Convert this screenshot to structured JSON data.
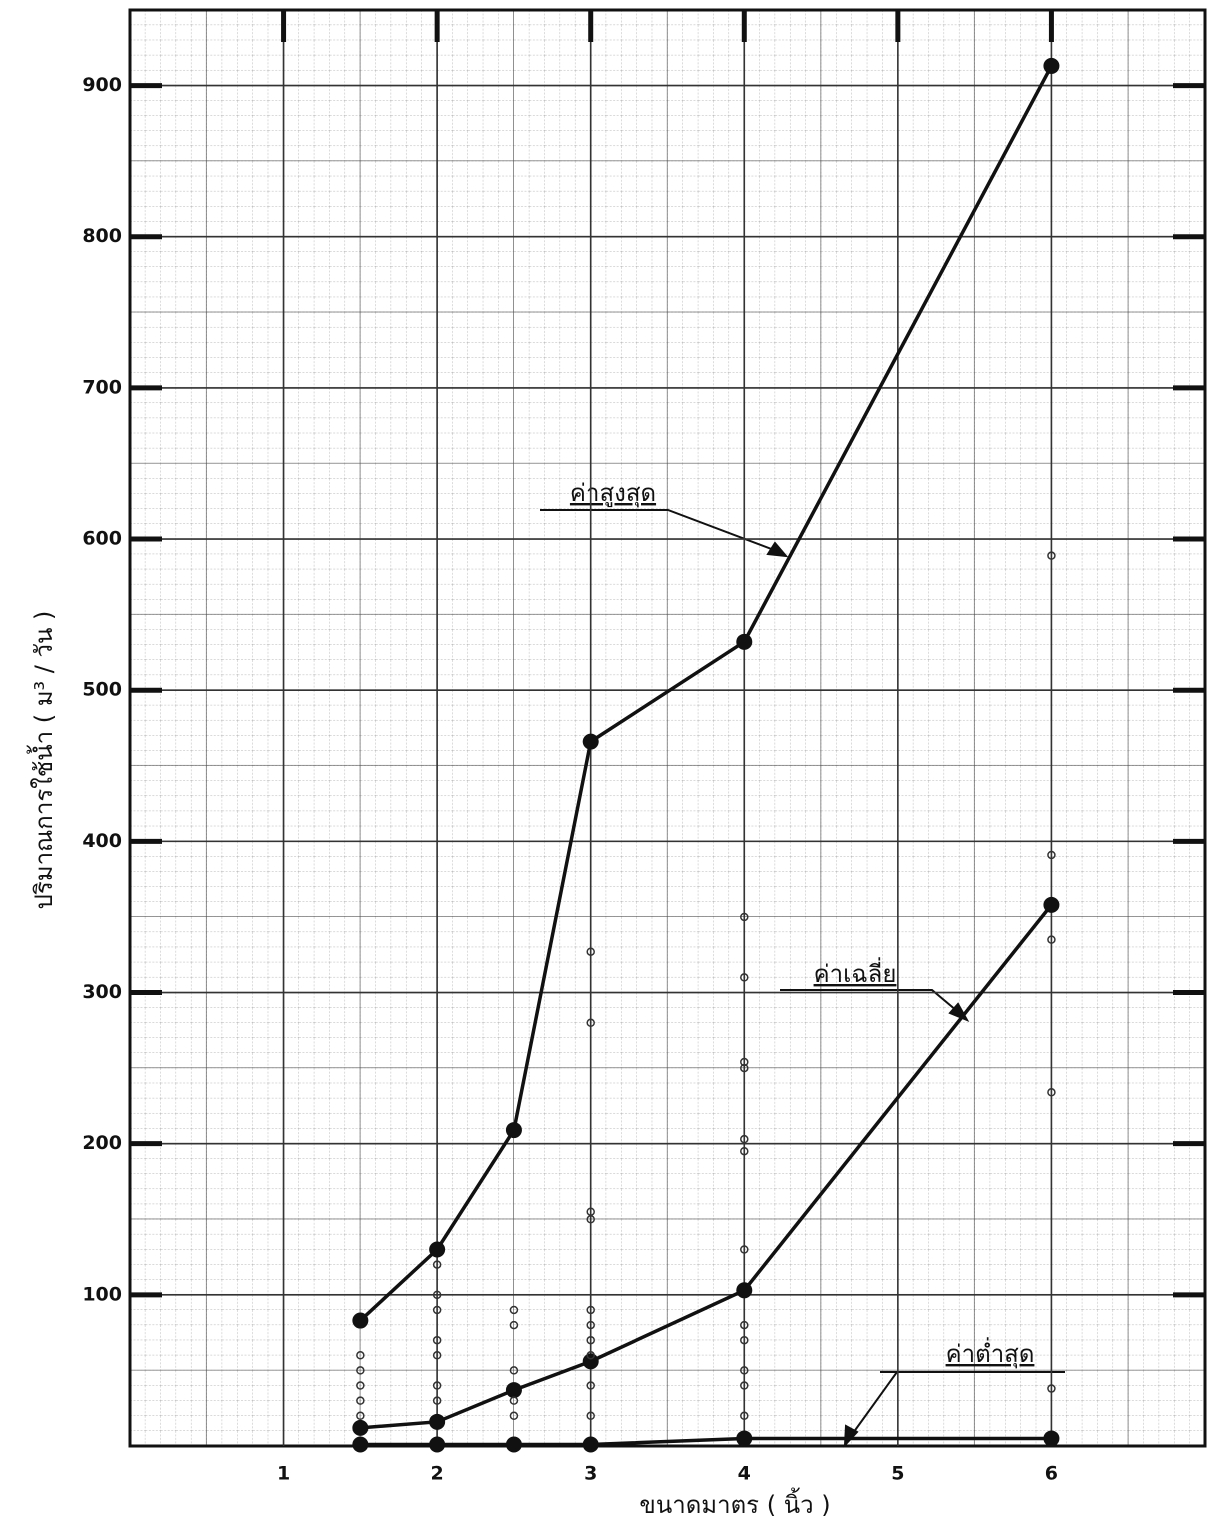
{
  "chart_data": {
    "type": "line",
    "x_label": "ขนาดมาตร ( นิ้ว )",
    "y_label": "ปริมาณการใช้น้ำ   ( ม³ / วัน )",
    "xlim": [
      0,
      7
    ],
    "ylim": [
      0,
      950
    ],
    "xticks": [
      1,
      2,
      3,
      4,
      5,
      6
    ],
    "yticks": [
      100,
      200,
      300,
      400,
      500,
      600,
      700,
      800,
      900
    ],
    "grid": true,
    "x": [
      1.5,
      2,
      2.5,
      3,
      4,
      6
    ],
    "series": [
      {
        "name": "ค่าสูงสุด",
        "color": "#111111",
        "values": [
          83,
          130,
          209,
          466,
          532,
          913
        ]
      },
      {
        "name": "ค่าเฉลี่ย",
        "color": "#111111",
        "values": [
          12,
          16,
          37,
          56,
          103,
          358
        ]
      },
      {
        "name": "ค่าต่ำสุด",
        "color": "#111111",
        "values": [
          1,
          1,
          1,
          1,
          5,
          5
        ]
      },
      {
        "type": "scatter",
        "color": "#333333",
        "x": [
          1.5,
          1.5,
          1.5,
          1.5,
          1.5,
          2,
          2,
          2,
          2,
          2,
          2,
          2,
          2.5,
          2.5,
          2.5,
          2.5,
          2.5,
          3,
          3,
          3,
          3,
          3,
          3,
          3,
          3,
          3,
          3,
          4,
          4,
          4,
          4,
          4,
          4,
          4,
          4,
          4,
          4,
          4,
          4,
          6,
          6,
          6,
          6,
          6
        ],
        "values": [
          60,
          50,
          40,
          30,
          20,
          120,
          100,
          90,
          70,
          60,
          40,
          30,
          90,
          80,
          50,
          30,
          20,
          327,
          280,
          155,
          150,
          90,
          80,
          70,
          60,
          40,
          20,
          350,
          310,
          254,
          250,
          203,
          195,
          130,
          80,
          70,
          50,
          40,
          20,
          589,
          391,
          335,
          234,
          38
        ]
      }
    ]
  }
}
